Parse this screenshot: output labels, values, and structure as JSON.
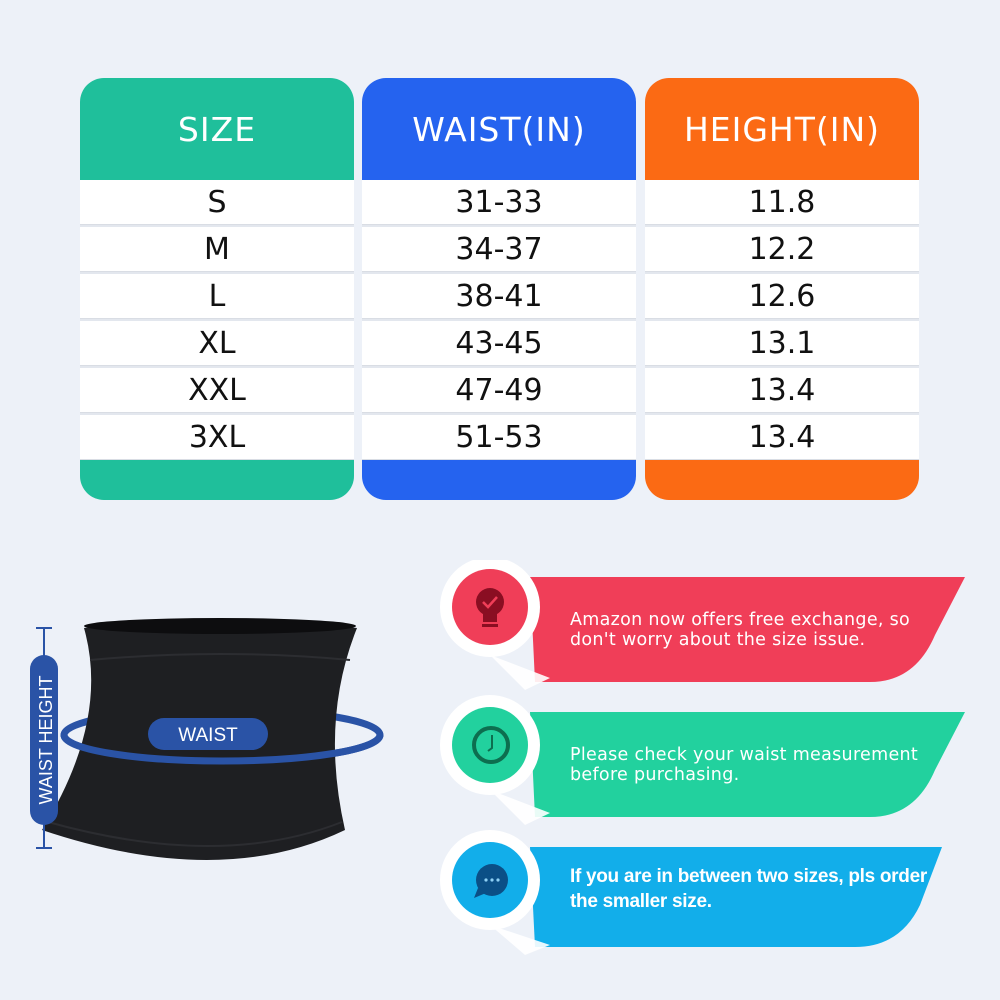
{
  "table": {
    "columns": [
      {
        "header": "SIZE",
        "color": "#1fbf9b",
        "values": [
          "S",
          "M",
          "L",
          "XL",
          "XXL",
          "3XL"
        ]
      },
      {
        "header": "WAIST(IN)",
        "color": "#2563ef",
        "values": [
          "31-33",
          "34-37",
          "38-41",
          "43-45",
          "47-49",
          "51-53"
        ]
      },
      {
        "header": "HEIGHT(IN)",
        "color": "#fb6a14",
        "values": [
          "11.8",
          "12.2",
          "12.6",
          "13.1",
          "13.4",
          "13.4"
        ]
      }
    ]
  },
  "diagram": {
    "waist_label": "WAIST",
    "waist_height_label": "WAIST HEIGHT",
    "accent": "#2a53a6"
  },
  "tips": [
    {
      "icon": "lightbulb-check-icon",
      "color": "#f03e58",
      "text_line1": "Amazon now offers free exchange, so",
      "text_line2": "don't worry about the size issue."
    },
    {
      "icon": "clock-icon",
      "color": "#22d19e",
      "text_line1": "Please check your waist measurement",
      "text_line2": "before purchasing."
    },
    {
      "icon": "chat-bubble-icon",
      "color": "#12aeea",
      "text_line1": "If you are in between two sizes, pls order",
      "text_line2": "the smaller size."
    }
  ]
}
